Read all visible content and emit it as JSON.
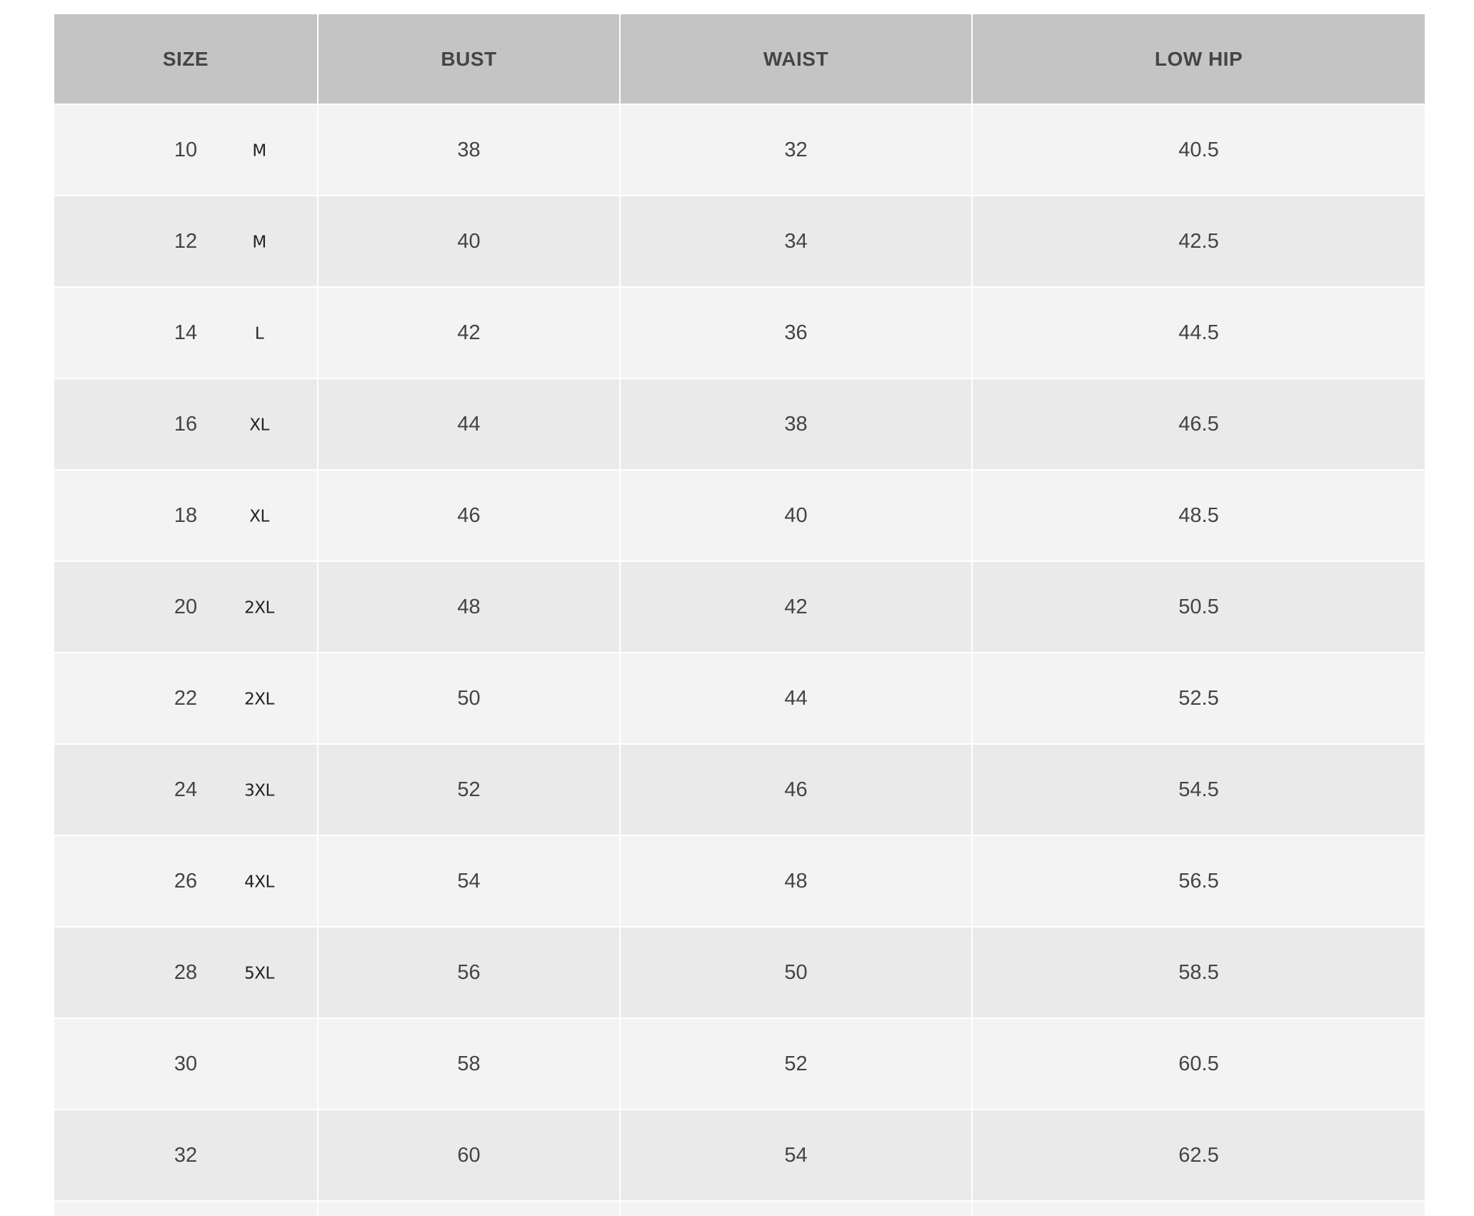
{
  "headers": [
    "SIZE",
    "BUST",
    "WAIST",
    "LOW HIP"
  ],
  "rows": [
    {
      "size": "10",
      "letter": "M",
      "bust": "38",
      "waist": "32",
      "low_hip": "40.5"
    },
    {
      "size": "12",
      "letter": "M",
      "bust": "40",
      "waist": "34",
      "low_hip": "42.5"
    },
    {
      "size": "14",
      "letter": "L",
      "bust": "42",
      "waist": "36",
      "low_hip": "44.5"
    },
    {
      "size": "16",
      "letter": "XL",
      "bust": "44",
      "waist": "38",
      "low_hip": "46.5"
    },
    {
      "size": "18",
      "letter": "XL",
      "bust": "46",
      "waist": "40",
      "low_hip": "48.5"
    },
    {
      "size": "20",
      "letter": "2XL",
      "bust": "48",
      "waist": "42",
      "low_hip": "50.5"
    },
    {
      "size": "22",
      "letter": "2XL",
      "bust": "50",
      "waist": "44",
      "low_hip": "52.5"
    },
    {
      "size": "24",
      "letter": "3XL",
      "bust": "52",
      "waist": "46",
      "low_hip": "54.5"
    },
    {
      "size": "26",
      "letter": "4XL",
      "bust": "54",
      "waist": "48",
      "low_hip": "56.5"
    },
    {
      "size": "28",
      "letter": "5XL",
      "bust": "56",
      "waist": "50",
      "low_hip": "58.5"
    },
    {
      "size": "30",
      "letter": "",
      "bust": "58",
      "waist": "52",
      "low_hip": "60.5"
    },
    {
      "size": "32",
      "letter": "",
      "bust": "60",
      "waist": "54",
      "low_hip": "62.5"
    }
  ],
  "colors": {
    "header_bg": "#c4c4c4",
    "row_odd": "#f3f3f3",
    "row_even": "#eaeaea",
    "text": "#444444"
  }
}
